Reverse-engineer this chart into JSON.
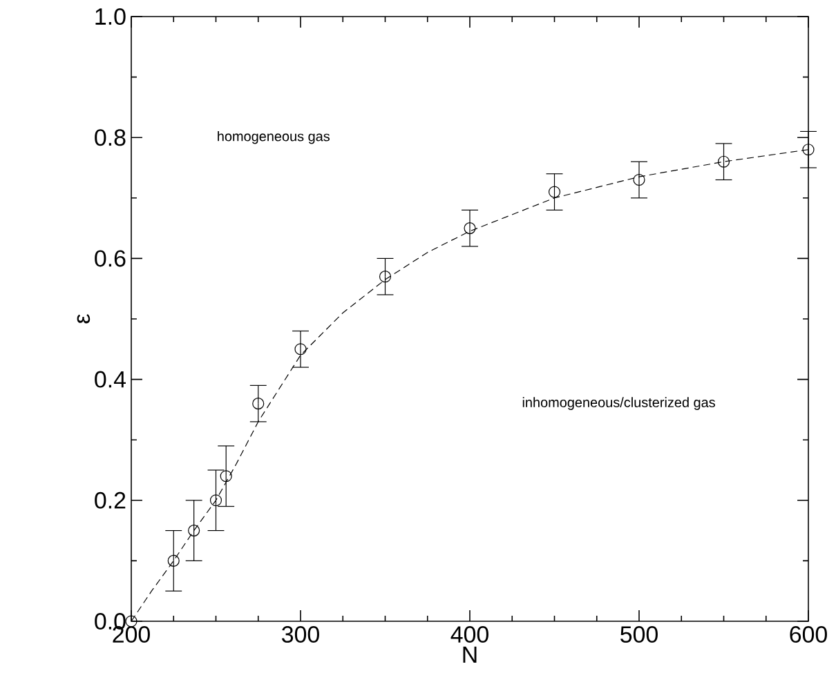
{
  "chart_data": {
    "type": "scatter",
    "xlabel": "N",
    "ylabel": "ε",
    "x": [
      200,
      225,
      237,
      250,
      256,
      275,
      300,
      350,
      400,
      450,
      500,
      550,
      600
    ],
    "series": [
      {
        "color": "#000000",
        "marker": "circle",
        "values": [
          0.0,
          0.1,
          0.15,
          0.2,
          0.24,
          0.36,
          0.45,
          0.57,
          0.65,
          0.71,
          0.73,
          0.76,
          0.78
        ],
        "errors": [
          null,
          0.05,
          0.05,
          0.05,
          0.05,
          0.03,
          0.03,
          0.03,
          0.03,
          0.03,
          0.03,
          0.03,
          0.03
        ]
      },
      {
        "type": "line",
        "color": "#000000",
        "line_style": "dashed",
        "x": [
          200,
          212,
          225,
          237,
          250,
          262,
          275,
          300,
          325,
          350,
          375,
          400,
          450,
          500,
          550,
          600
        ],
        "values": [
          0.0,
          0.05,
          0.1,
          0.15,
          0.2,
          0.26,
          0.33,
          0.44,
          0.51,
          0.565,
          0.61,
          0.645,
          0.7,
          0.735,
          0.76,
          0.78
        ]
      }
    ],
    "xlim": [
      200,
      600
    ],
    "ylim": [
      0,
      1
    ],
    "xticks": [
      200,
      300,
      400,
      500,
      600
    ],
    "yticks": [
      {
        "value": 0,
        "label": "0.0"
      },
      {
        "value": 0.2,
        "label": "0.2"
      },
      {
        "value": 0.4,
        "label": "0.4"
      },
      {
        "value": 0.6,
        "label": "0.6"
      },
      {
        "value": 0.8,
        "label": "0.8"
      },
      {
        "value": 1.0,
        "label": "1.0"
      }
    ],
    "annotations": [
      "homogeneous gas",
      "inhomogeneous/clusterized gas"
    ]
  }
}
